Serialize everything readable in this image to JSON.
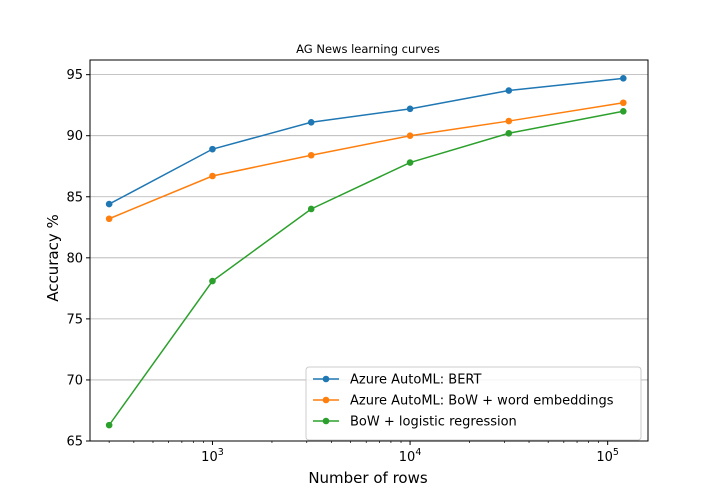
{
  "chart_data": {
    "type": "line",
    "title": "AG News learning curves",
    "xlabel": "Number of rows",
    "ylabel": "Accuracy %",
    "x_scale": "log",
    "xlim": [
      240,
      160000
    ],
    "ylim": [
      65,
      96.2
    ],
    "x": [
      300,
      1000,
      3160,
      10000,
      31600,
      120000
    ],
    "x_ticks": [
      {
        "value": 1000,
        "base": "10",
        "exp": "3"
      },
      {
        "value": 10000,
        "base": "10",
        "exp": "4"
      },
      {
        "value": 100000,
        "base": "10",
        "exp": "5"
      }
    ],
    "y_ticks": [
      65,
      70,
      75,
      80,
      85,
      90,
      95
    ],
    "grid": "horizontal",
    "legend_position": "lower-right",
    "series": [
      {
        "name": "Azure AutoML: BERT",
        "color": "#1f77b4",
        "values": [
          84.4,
          88.9,
          91.1,
          92.2,
          93.7,
          94.7
        ]
      },
      {
        "name": "Azure AutoML: BoW + word embeddings",
        "color": "#ff7f0e",
        "values": [
          83.2,
          86.7,
          88.4,
          90.0,
          91.2,
          92.7
        ]
      },
      {
        "name": "BoW + logistic regression",
        "color": "#2ca02c",
        "values": [
          66.3,
          78.1,
          84.0,
          87.8,
          90.2,
          92.0
        ]
      }
    ]
  }
}
